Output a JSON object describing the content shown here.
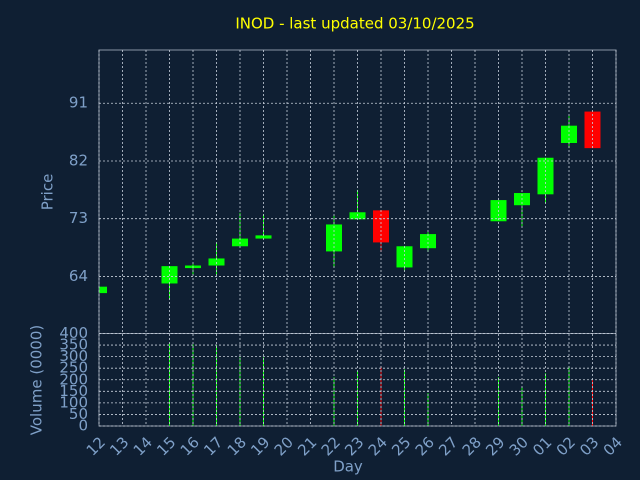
{
  "chart_data": {
    "type": "candlestick",
    "title": "INOD - last updated 03/10/2025",
    "ylabel": "Price",
    "xlabel": "Day",
    "volume_label": "Volume (0000)",
    "categories": [
      "12",
      "13",
      "14",
      "15",
      "16",
      "17",
      "18",
      "19",
      "20",
      "21",
      "22",
      "23",
      "24",
      "25",
      "26",
      "27",
      "28",
      "29",
      "30",
      "01",
      "02",
      "03",
      "04"
    ],
    "open": [
      61.4,
      null,
      null,
      62.9,
      65.3,
      65.7,
      68.7,
      69.9,
      null,
      null,
      67.9,
      72.9,
      74.3,
      65.4,
      68.4,
      null,
      null,
      72.6,
      75.1,
      76.8,
      84.8,
      89.7,
      null
    ],
    "high": [
      62.4,
      null,
      null,
      65.6,
      66.0,
      69.3,
      73.9,
      73.7,
      null,
      null,
      73.5,
      77.5,
      74.3,
      68.7,
      70.9,
      null,
      null,
      75.9,
      77.0,
      82.5,
      89.0,
      89.7,
      null
    ],
    "low": [
      61.3,
      null,
      null,
      60.4,
      64.2,
      64.2,
      68.7,
      69.9,
      null,
      null,
      65.4,
      72.9,
      67.8,
      64.9,
      67.8,
      null,
      null,
      72.6,
      71.8,
      75.4,
      84.0,
      84.0,
      null
    ],
    "close": [
      62.4,
      null,
      null,
      65.6,
      65.7,
      66.8,
      69.9,
      70.4,
      null,
      null,
      72.1,
      74.0,
      69.3,
      68.7,
      70.6,
      null,
      null,
      75.9,
      77.0,
      82.5,
      87.5,
      84.0,
      null
    ],
    "volume": [
      null,
      null,
      null,
      357,
      353,
      348,
      297,
      297,
      null,
      null,
      211,
      237,
      258,
      245,
      142,
      null,
      null,
      211,
      168,
      228,
      258,
      198,
      null
    ],
    "ylim": [
      55.1,
      99.3
    ],
    "yticks": [
      64,
      73,
      82,
      91
    ],
    "volume_ylim": [
      0,
      400
    ],
    "volume_yticks": [
      0,
      50,
      100,
      150,
      200,
      250,
      300,
      350,
      400
    ],
    "up_color": "#00ff00",
    "down_color": "#ff0000",
    "grid": true
  }
}
